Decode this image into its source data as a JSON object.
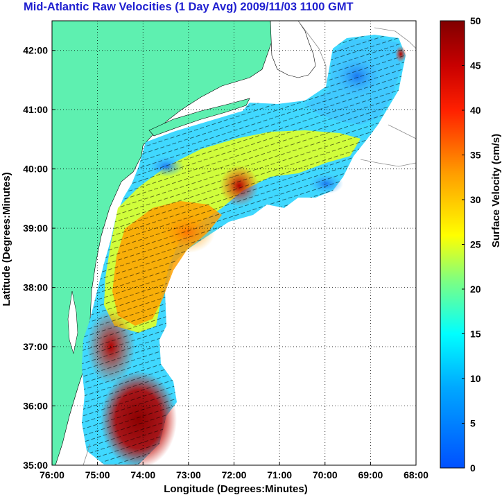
{
  "title": "Mid-Atlantic Raw Velocities (1 Day Avg) 2009/11/03 1100 GMT",
  "map": {
    "xlabel": "Longitude (Degrees:Minutes)",
    "ylabel": "Latitude (Degrees:Minutes)",
    "lon_range": [
      -76,
      -68
    ],
    "lat_range": [
      35,
      42.5
    ],
    "lon_ticks": [
      "76:00",
      "75:00",
      "74:00",
      "73:00",
      "72:00",
      "71:00",
      "70:00",
      "69:00",
      "68:00"
    ],
    "lat_ticks": [
      "35:00",
      "36:00",
      "37:00",
      "38:00",
      "39:00",
      "40:00",
      "41:00",
      "42:00"
    ],
    "land_color": "#5ef0b0",
    "grid": true
  },
  "colorbar": {
    "label": "Surface Velocity (cm/s)",
    "min": 0,
    "max": 50,
    "ticks": [
      "0",
      "5",
      "10",
      "15",
      "20",
      "25",
      "30",
      "35",
      "40",
      "45",
      "50"
    ]
  }
}
